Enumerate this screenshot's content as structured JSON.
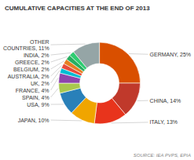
{
  "chart_data": {
    "type": "donut",
    "title": "CUMULATIVE CAPACITIES AT THE END OF 2013",
    "categories": [
      "GERMANY, 25%",
      "CHINA, 14%",
      "ITALY, 13%",
      "JAPAN, 10%",
      "USA, 9%",
      "SPAIN, 4%",
      "FRANCE, 4%",
      "UK, 2%",
      "AUSTRALIA, 2%",
      "BELGIUM, 2%",
      "GREECE, 2%",
      "INDIA, 2%",
      "OTHER\nCOUNTRIES, 11%"
    ],
    "values": [
      25,
      14,
      13,
      10,
      9,
      4,
      4,
      2,
      2,
      2,
      2,
      2,
      11
    ],
    "colors": [
      "#d94f00",
      "#c0392b",
      "#e8341c",
      "#f0a500",
      "#2980b9",
      "#a8c84e",
      "#8e44ad",
      "#00bcd4",
      "#e74c3c",
      "#e67e22",
      "#27ae60",
      "#2ecc71",
      "#95a5a6"
    ],
    "annotations": [
      "SOURCE: IEA PVPS, EPIA"
    ]
  }
}
